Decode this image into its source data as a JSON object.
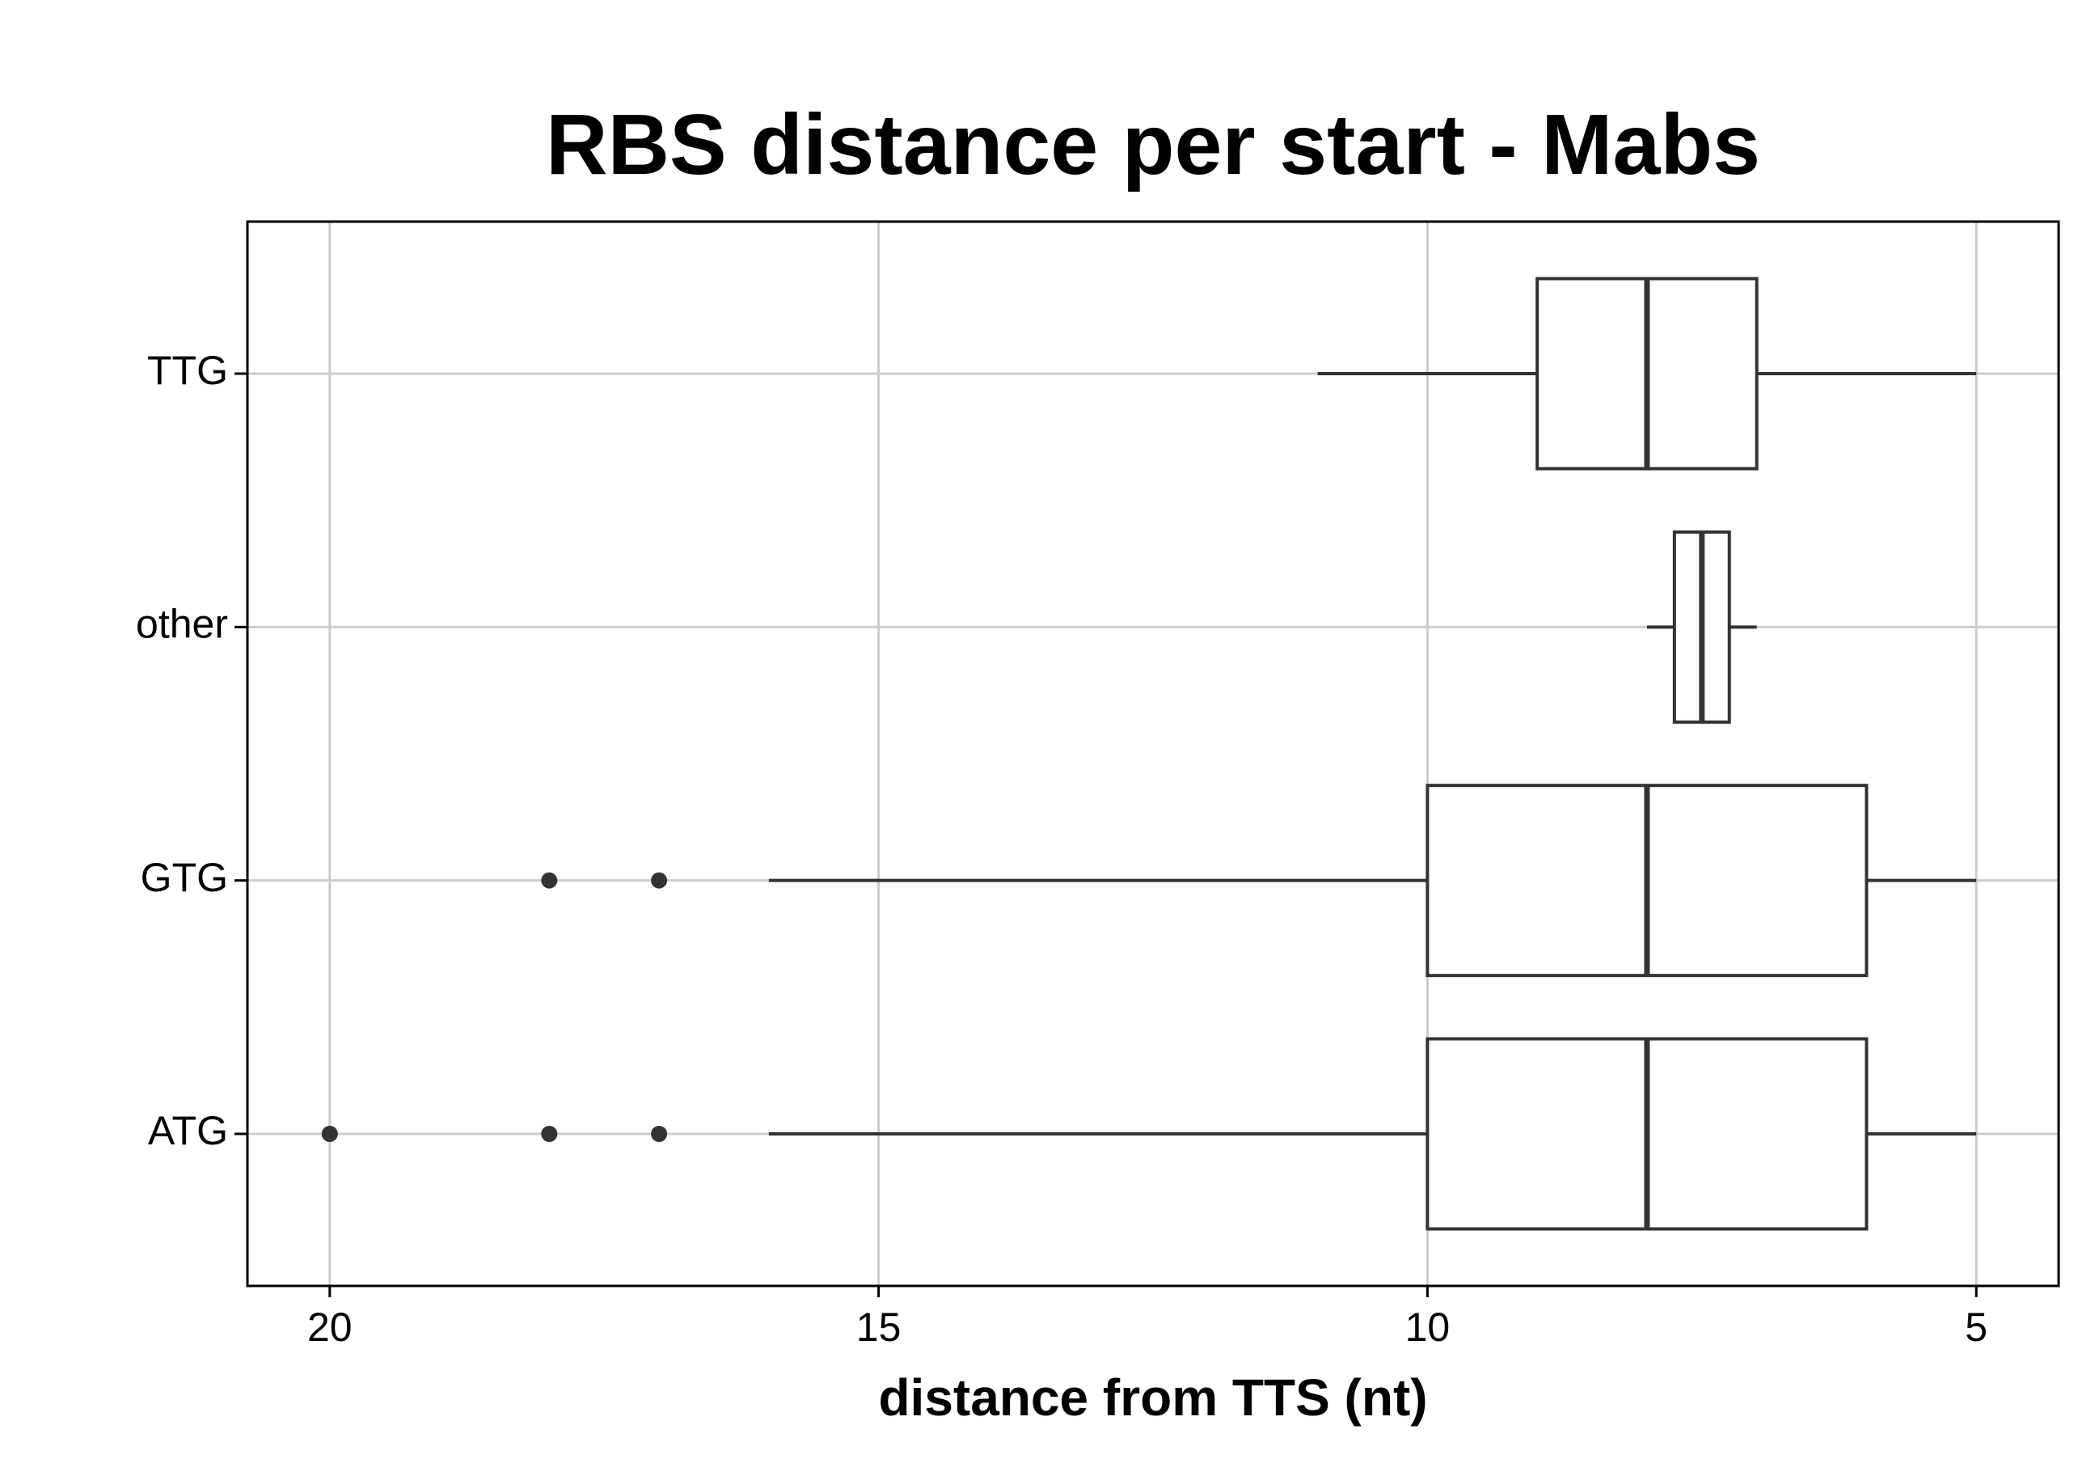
{
  "chart_data": {
    "type": "boxplot",
    "orientation": "horizontal",
    "title": "RBS distance per start - Mabs",
    "x_label": "distance from TTS (nt)",
    "categories": [
      "ATG",
      "GTG",
      "other",
      "TTG"
    ],
    "boxes": [
      {
        "min": 5,
        "q1": 6,
        "median": 8,
        "q3": 10,
        "max": 16,
        "outliers": [
          20,
          18,
          17
        ]
      },
      {
        "min": 5,
        "q1": 6,
        "median": 8,
        "q3": 10,
        "max": 16,
        "outliers": [
          18,
          17
        ]
      },
      {
        "min": 7,
        "q1": 7.25,
        "median": 7.5,
        "q3": 7.75,
        "max": 8,
        "outliers": []
      },
      {
        "min": 5,
        "q1": 7,
        "median": 8,
        "q3": 9,
        "max": 11,
        "outliers": []
      }
    ],
    "color": "#333333",
    "xlim": [
      20.75,
      4.25
    ],
    "xticks": [
      20,
      15,
      10,
      5
    ],
    "grid": true
  }
}
